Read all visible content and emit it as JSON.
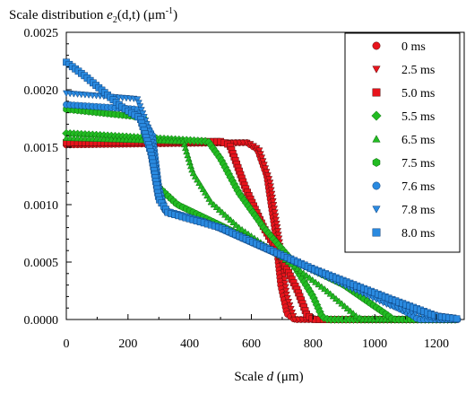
{
  "chart_data": {
    "type": "scatter",
    "title_parts": [
      "Scale distribution ",
      "e",
      "2",
      "(d,t)",
      " (μm",
      "-1",
      ")"
    ],
    "xlabel_parts": [
      "Scale ",
      "d",
      " (μm)"
    ],
    "xlim": [
      0,
      1290
    ],
    "ylim": [
      0,
      0.0025
    ],
    "xticks": [
      0,
      200,
      400,
      600,
      800,
      1000,
      1200
    ],
    "xtick_labels": [
      "0",
      "200",
      "400",
      "600",
      "800",
      "1000",
      "1200"
    ],
    "yticks": [
      0,
      0.0005,
      0.001,
      0.0015,
      0.002,
      0.0025
    ],
    "ytick_labels": [
      "0.0000",
      "0.0005",
      "0.0010",
      "0.0015",
      "0.0020",
      "0.0025"
    ],
    "grid": false,
    "legend_position": "top-right",
    "series": [
      {
        "name": "0 ms",
        "marker": "circle",
        "color": "#e8141c",
        "profile": [
          [
            0,
            0.00152
          ],
          [
            585,
            0.00154
          ],
          [
            620,
            0.00148
          ],
          [
            650,
            0.00125
          ],
          [
            675,
            0.0008
          ],
          [
            695,
            0.0003
          ],
          [
            715,
            5e-05
          ],
          [
            740,
            0
          ],
          [
            1270,
            0
          ]
        ]
      },
      {
        "name": "2.5 ms",
        "marker": "triangle-down",
        "color": "#e8141c",
        "profile": [
          [
            0,
            0.00153
          ],
          [
            590,
            0.00154
          ],
          [
            625,
            0.00148
          ],
          [
            660,
            0.0012
          ],
          [
            690,
            0.0007
          ],
          [
            715,
            0.0002
          ],
          [
            740,
            0
          ],
          [
            1270,
            0
          ]
        ]
      },
      {
        "name": "5.0 ms",
        "marker": "square",
        "color": "#e8141c",
        "profile": [
          [
            0,
            0.00154
          ],
          [
            500,
            0.00155
          ],
          [
            530,
            0.00152
          ],
          [
            580,
            0.00115
          ],
          [
            640,
            0.0008
          ],
          [
            700,
            0.00052
          ],
          [
            750,
            0.00025
          ],
          [
            780,
            4e-05
          ],
          [
            800,
            0
          ],
          [
            1270,
            0
          ]
        ]
      },
      {
        "name": "5.5 ms",
        "marker": "diamond",
        "color": "#22bb22",
        "profile": [
          [
            0,
            0.00162
          ],
          [
            460,
            0.00155
          ],
          [
            500,
            0.0014
          ],
          [
            560,
            0.0011
          ],
          [
            640,
            0.0008
          ],
          [
            720,
            0.00055
          ],
          [
            800,
            0.0002
          ],
          [
            830,
            2e-05
          ],
          [
            850,
            0
          ],
          [
            1270,
            0
          ]
        ]
      },
      {
        "name": "6.5 ms",
        "marker": "triangle-up",
        "color": "#22bb22",
        "profile": [
          [
            0,
            0.00158
          ],
          [
            380,
            0.00155
          ],
          [
            410,
            0.00128
          ],
          [
            470,
            0.00102
          ],
          [
            560,
            0.0008
          ],
          [
            700,
            0.00054
          ],
          [
            840,
            0.00026
          ],
          [
            940,
            3e-05
          ],
          [
            960,
            0
          ],
          [
            1270,
            0
          ]
        ]
      },
      {
        "name": "7.5 ms",
        "marker": "hexagon",
        "color": "#22bb22",
        "profile": [
          [
            0,
            0.00183
          ],
          [
            250,
            0.00176
          ],
          [
            285,
            0.0014
          ],
          [
            300,
            0.00115
          ],
          [
            360,
            0.001
          ],
          [
            500,
            0.00082
          ],
          [
            700,
            0.00056
          ],
          [
            900,
            0.0003
          ],
          [
            1040,
            4e-05
          ],
          [
            1060,
            0
          ],
          [
            1270,
            0
          ]
        ]
      },
      {
        "name": "7.6 ms",
        "marker": "circle",
        "color": "#2a8ae0",
        "profile": [
          [
            0,
            0.00187
          ],
          [
            230,
            0.00183
          ],
          [
            280,
            0.0016
          ],
          [
            300,
            0.00115
          ],
          [
            320,
            0.00095
          ],
          [
            450,
            0.00085
          ],
          [
            700,
            0.00055
          ],
          [
            1000,
            0.0002
          ],
          [
            1120,
            4e-05
          ],
          [
            1140,
            0
          ],
          [
            1270,
            0
          ]
        ]
      },
      {
        "name": "7.8 ms",
        "marker": "triangle-down",
        "color": "#2a8ae0",
        "profile": [
          [
            0,
            0.00197
          ],
          [
            230,
            0.00192
          ],
          [
            275,
            0.0016
          ],
          [
            300,
            0.0011
          ],
          [
            320,
            0.00093
          ],
          [
            500,
            0.0008
          ],
          [
            800,
            0.00042
          ],
          [
            1050,
            0.00012
          ],
          [
            1180,
            2e-05
          ],
          [
            1210,
            0
          ],
          [
            1270,
            0
          ]
        ]
      },
      {
        "name": "8.0 ms",
        "marker": "square",
        "color": "#2a8ae0",
        "profile": [
          [
            0,
            0.00224
          ],
          [
            60,
            0.00212
          ],
          [
            180,
            0.00185
          ],
          [
            240,
            0.00175
          ],
          [
            275,
            0.00145
          ],
          [
            300,
            0.00105
          ],
          [
            330,
            0.00093
          ],
          [
            500,
            0.0008
          ],
          [
            800,
            0.00044
          ],
          [
            1050,
            0.00018
          ],
          [
            1200,
            3e-05
          ],
          [
            1260,
            1e-05
          ],
          [
            1275,
            0
          ]
        ]
      }
    ]
  }
}
